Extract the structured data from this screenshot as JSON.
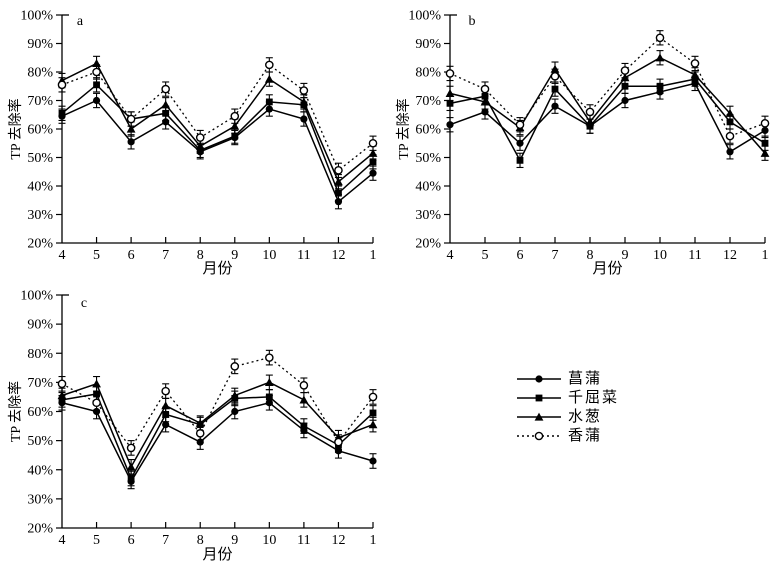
{
  "figure": {
    "background_color": "#ffffff",
    "line_color": "#000000",
    "xlabel": "月份",
    "ylabel": "TP 去除率"
  },
  "legend": {
    "items": [
      {
        "label": "菖蒲",
        "marker": "filled-circle",
        "line": "solid"
      },
      {
        "label": "千屈菜",
        "marker": "filled-square",
        "line": "solid"
      },
      {
        "label": "水葱",
        "marker": "filled-triangle",
        "line": "solid"
      },
      {
        "label": "香蒲",
        "marker": "open-circle",
        "line": "dotted"
      }
    ]
  },
  "chart_data": [
    {
      "type": "line",
      "panel_label": "a",
      "title": "",
      "xlabel": "月份",
      "ylabel": "TP 去除率",
      "x": [
        4,
        5,
        6,
        7,
        8,
        9,
        10,
        11,
        12,
        1
      ],
      "ylim": [
        20,
        100
      ],
      "yticks": [
        20,
        30,
        40,
        50,
        60,
        70,
        80,
        90,
        100
      ],
      "ytick_suffix": "%",
      "grid": false,
      "series": [
        {
          "name": "菖蒲",
          "marker": "filled-circle",
          "line": "solid",
          "err": 2.5,
          "values": [
            64.5,
            70,
            55.5,
            62.5,
            52,
            57,
            67,
            63.5,
            34.5,
            44.5
          ]
        },
        {
          "name": "千屈菜",
          "marker": "filled-square",
          "line": "solid",
          "err": 2.5,
          "values": [
            65.5,
            75.5,
            63.5,
            65.5,
            52.5,
            57.5,
            69.5,
            68.5,
            37.5,
            48.5
          ]
        },
        {
          "name": "水葱",
          "marker": "filled-triangle",
          "line": "solid",
          "err": 2.5,
          "values": [
            77,
            83,
            60,
            68.5,
            54,
            61,
            77.5,
            69.5,
            41.5,
            51.5
          ]
        },
        {
          "name": "香蒲",
          "marker": "open-circle",
          "line": "dotted",
          "err": 2.5,
          "values": [
            75.5,
            80,
            63.5,
            74,
            57,
            64.5,
            82.5,
            73.5,
            45.5,
            55
          ]
        }
      ]
    },
    {
      "type": "line",
      "panel_label": "b",
      "title": "",
      "xlabel": "月份",
      "ylabel": "TP 去除率",
      "x": [
        4,
        5,
        6,
        7,
        8,
        9,
        10,
        11,
        12,
        1
      ],
      "ylim": [
        20,
        100
      ],
      "yticks": [
        20,
        30,
        40,
        50,
        60,
        70,
        80,
        90,
        100
      ],
      "ytick_suffix": "%",
      "grid": false,
      "series": [
        {
          "name": "菖蒲",
          "marker": "filled-circle",
          "line": "solid",
          "err": 2.5,
          "values": [
            61.5,
            66,
            55,
            68,
            61,
            70,
            73,
            76,
            52,
            59.5
          ]
        },
        {
          "name": "千屈菜",
          "marker": "filled-square",
          "line": "solid",
          "err": 2.5,
          "values": [
            69,
            71.5,
            49,
            74,
            61,
            75,
            75,
            77.5,
            62.5,
            55
          ]
        },
        {
          "name": "水葱",
          "marker": "filled-triangle",
          "line": "solid",
          "err": 2.5,
          "values": [
            72.5,
            69.5,
            60.5,
            81,
            62.5,
            78,
            85,
            79,
            65.5,
            51.5
          ]
        },
        {
          "name": "香蒲",
          "marker": "open-circle",
          "line": "dotted",
          "err": 2.5,
          "values": [
            79.5,
            74,
            61.5,
            78.5,
            66,
            80.5,
            92,
            83,
            57.5,
            62
          ]
        }
      ]
    },
    {
      "type": "line",
      "panel_label": "c",
      "title": "",
      "xlabel": "月份",
      "ylabel": "TP 去除率",
      "x": [
        4,
        5,
        6,
        7,
        8,
        9,
        10,
        11,
        12,
        1
      ],
      "ylim": [
        20,
        100
      ],
      "yticks": [
        20,
        30,
        40,
        50,
        60,
        70,
        80,
        90,
        100
      ],
      "ytick_suffix": "%",
      "grid": false,
      "series": [
        {
          "name": "菖蒲",
          "marker": "filled-circle",
          "line": "solid",
          "err": 2.5,
          "values": [
            63,
            60,
            36,
            55.5,
            49.5,
            60,
            63,
            53.5,
            46.5,
            43
          ]
        },
        {
          "name": "千屈菜",
          "marker": "filled-square",
          "line": "solid",
          "err": 2.5,
          "values": [
            64,
            66,
            37,
            59,
            55.5,
            64.5,
            65,
            55,
            48.5,
            59.5
          ]
        },
        {
          "name": "水葱",
          "marker": "filled-triangle",
          "line": "solid",
          "err": 2.5,
          "values": [
            65.5,
            69.5,
            41,
            62,
            56,
            65.5,
            70,
            64,
            51,
            55.5
          ]
        },
        {
          "name": "香蒲",
          "marker": "open-circle",
          "line": "dotted",
          "err": 2.5,
          "values": [
            69.5,
            63,
            47.5,
            67,
            52.5,
            75.5,
            78.5,
            69,
            49.5,
            65
          ]
        }
      ]
    }
  ]
}
